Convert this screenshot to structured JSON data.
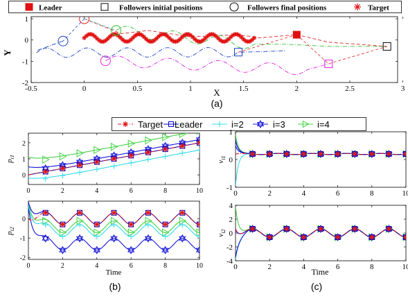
{
  "panel_labels": {
    "a": "(a)",
    "b": "(b)",
    "c": "(c)"
  },
  "colors": {
    "target": "#e01010",
    "leader": "#0000c8",
    "i2": "#33dcec",
    "i3": "#1515d8",
    "i4": "#44d244",
    "f1": "#e02020",
    "f2": "#1a40c0",
    "f3": "#30c030",
    "f4": "#e020e0"
  },
  "chart_data": [
    {
      "type": "line",
      "panel": "a",
      "xlabel": "X",
      "ylabel": "Y",
      "xlim": [
        -0.5,
        2.95
      ],
      "ylim": [
        -2,
        1.1
      ],
      "xticks": [
        "-0.5",
        "0",
        "0.5",
        "1",
        "1.5",
        "2",
        "2.5",
        "3"
      ],
      "yticks": [
        "1",
        "0",
        "-1",
        "-2"
      ],
      "grid": false,
      "legend": {
        "placement": "top",
        "entries": [
          "Leader",
          "Followers initial positions",
          "Followers final positions",
          "Target"
        ]
      },
      "markers": {
        "leader": [
          2.0,
          0.25
        ],
        "followers_initial": [
          [
            2.85,
            -0.3
          ],
          [
            1.45,
            -0.57
          ],
          [
            2.3,
            -1.12
          ],
          [
            2.85,
            -0.3
          ]
        ],
        "followers_final": [
          [
            0.0,
            1.0
          ],
          [
            -0.2,
            -0.05
          ],
          [
            0.3,
            0.45
          ],
          [
            0.2,
            -0.98
          ]
        ],
        "target_trajectory": {
          "x_start": 0.0,
          "x_end": 1.6,
          "y_center": 0.1,
          "amplitude": 0.18,
          "periods": 7
        }
      }
    },
    {
      "type": "line",
      "panel": "b-top",
      "ylabel": "p_i1",
      "xlim": [
        0,
        10
      ],
      "ylim": [
        -0.6,
        2.6
      ],
      "xticks": [
        "0",
        "2",
        "4",
        "6",
        "8",
        "10"
      ],
      "yticks": [
        "2",
        "1",
        "0"
      ],
      "series": [
        {
          "name": "Target",
          "slope": 0.2,
          "intercept": 0.0
        },
        {
          "name": "Leader",
          "slope": 0.2,
          "intercept": 0.0
        },
        {
          "name": "i=2",
          "slope": 0.2,
          "intercept": -0.45
        },
        {
          "name": "i=3",
          "slope": 0.2,
          "intercept": 0.2
        },
        {
          "name": "i=4",
          "slope": 0.2,
          "intercept": 0.75
        }
      ]
    },
    {
      "type": "line",
      "panel": "b-bottom",
      "xlabel": "Time",
      "ylabel": "p_i2",
      "xlim": [
        0,
        10
      ],
      "ylim": [
        -2.1,
        0.9
      ],
      "xticks": [
        "0",
        "2",
        "4",
        "6",
        "8",
        "10"
      ],
      "yticks": [
        "0",
        "-1",
        "-2"
      ],
      "series": [
        {
          "name": "Target",
          "offset": 0.0,
          "amplitude": 0.3
        },
        {
          "name": "Leader",
          "offset": 0.0,
          "amplitude": 0.3
        },
        {
          "name": "i=2",
          "offset": -0.62,
          "amplitude": 0.3
        },
        {
          "name": "i=3",
          "offset": -1.32,
          "amplitude": 0.3
        },
        {
          "name": "i=4",
          "offset": -0.42,
          "amplitude": 0.3
        }
      ]
    },
    {
      "type": "line",
      "panel": "c-top",
      "ylabel": "v_i1",
      "xlim": [
        0,
        10
      ],
      "ylim": [
        -1,
        1
      ],
      "xticks": [
        "0",
        "2",
        "4",
        "6",
        "8",
        "10"
      ],
      "yticks": [
        "1",
        "0",
        "-1"
      ],
      "series": [
        {
          "name": "all",
          "steady": 0.2,
          "initial_spikes": [
            0.9,
            -0.95,
            0.5
          ]
        }
      ]
    },
    {
      "type": "line",
      "panel": "c-bottom",
      "xlabel": "Time",
      "ylabel": "v_i2",
      "xlim": [
        0,
        10
      ],
      "ylim": [
        -4,
        4
      ],
      "xticks": [
        "0",
        "2",
        "4",
        "6",
        "8",
        "10"
      ],
      "yticks": [
        "4",
        "2",
        "0",
        "-2",
        "-4"
      ],
      "series": [
        {
          "name": "all",
          "amplitude": 0.6,
          "initial_spikes": [
            3.8,
            -3.8
          ]
        }
      ]
    }
  ],
  "legend_b": [
    "Target",
    "Leader",
    "i=2",
    "i=3",
    "i=4"
  ],
  "axis_labels": {
    "a_x": "X",
    "a_y": "Y",
    "b_top_y_main": "p",
    "b_top_y_sub": "i1",
    "b_bot_y_main": "p",
    "b_bot_y_sub": "i2",
    "c_top_y_main": "v",
    "c_top_y_sub": "i1",
    "c_bot_y_main": "v",
    "c_bot_y_sub": "i2",
    "time": "Time"
  }
}
